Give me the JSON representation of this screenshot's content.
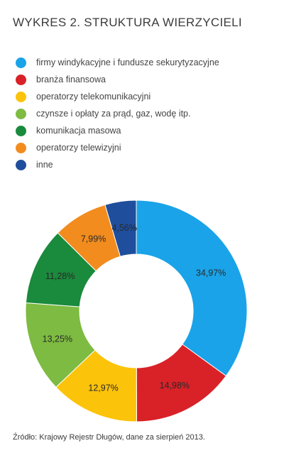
{
  "title": "WYKRES 2.  STRUKTURA WIERZYCIELI",
  "source": "Źródło: Krajowy Rejestr Długów, dane za sierpień 2013.",
  "chart_data": {
    "type": "pie",
    "donut": true,
    "legend_position": "top",
    "title": "WYKRES 2.  STRUKTURA WIERZYCIELI",
    "categories": [
      "firmy windykacyjne i fundusze sekurytyzacyjne",
      "branża finansowa",
      "operatorzy telekomunikacyjni",
      "czynsze i opłaty za prąd, gaz, wodę itp.",
      "komunikacja masowa",
      "operatorzy telewizyjni",
      "inne"
    ],
    "values": [
      34.97,
      14.98,
      12.97,
      13.25,
      11.28,
      7.99,
      4.56
    ],
    "value_labels": [
      "34,97%",
      "14,98%",
      "12,97%",
      "13,25%",
      "11,28%",
      "7,99%",
      "4,56%"
    ],
    "colors": [
      "#1aa3e8",
      "#d92128",
      "#fcc30b",
      "#7dbb42",
      "#1a8a3c",
      "#f28c1e",
      "#1f4e9c"
    ]
  }
}
